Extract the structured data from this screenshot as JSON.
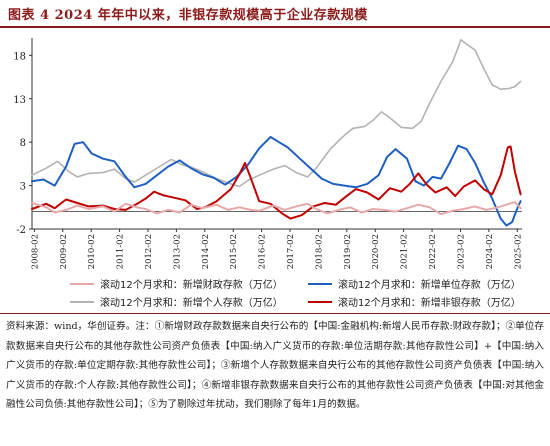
{
  "figure": {
    "title": "图表 4   2024 年年中以来，非银存款规模高于企业存款规模"
  },
  "legend": {
    "items": [
      {
        "label": "滚动12个月求和：新增财政存款（万亿）",
        "color": "#e6a8a8"
      },
      {
        "label": "滚动12个月求和：新增单位存款（万亿）",
        "color": "#1f5fbf"
      },
      {
        "label": "滚动12个月求和：新增个人存款（万亿）",
        "color": "#b3b3b3"
      },
      {
        "label": "滚动12个月求和：新增非银存款（万亿）",
        "color": "#c00000"
      }
    ]
  },
  "source": {
    "text": "资料来源：wind，华创证券。注：①新增财政存款数据来自央行公布的【中国:金融机构:新增人民币存款:财政存款】；②单位存款数据来自央行公布的其他存款性公司资产负债表【中国:纳入广义货币的存款:单位活期存款:其他存款性公司】+【中国:纳入广义货币的存款:单位定期存款:其他存款性公司】；③新增个人存款数据来自央行公布的其他存款性公司资产负债表【中国:纳入广义货币的存款:个人存款:其他存款性公司】；④新增非银存款数据来自央行公布的其他存款性公司资产负债表【中国:对其他金融性公司负债:其他存款性公司】；⑤为了剔除过年扰动，我们剔除了每年1月的数据。"
  },
  "chart_data": {
    "type": "line",
    "ylim": [
      -2,
      20
    ],
    "yticks": [
      -2,
      3,
      8,
      13,
      18
    ],
    "xticks": [
      "2008-02",
      "2009-02",
      "2010-02",
      "2011-02",
      "2012-02",
      "2013-02",
      "2014-02",
      "2015-02",
      "2016-02",
      "2017-02",
      "2018-02",
      "2019-02",
      "2020-02",
      "2021-02",
      "2022-02",
      "2023-02",
      "2024-02",
      "2025-02"
    ],
    "x_start": 2008.0,
    "x_end": 2025.25,
    "grid": false,
    "legend_position": "bottom",
    "series": [
      {
        "name": "滚动12个月求和：新增个人存款（万亿）",
        "color": "#b3b3b3",
        "points": [
          [
            2008.0,
            4.2
          ],
          [
            2008.5,
            5.0
          ],
          [
            2008.9,
            5.8
          ],
          [
            2009.3,
            4.6
          ],
          [
            2009.6,
            4.0
          ],
          [
            2010.0,
            4.4
          ],
          [
            2010.5,
            4.5
          ],
          [
            2010.9,
            4.9
          ],
          [
            2011.3,
            3.8
          ],
          [
            2011.6,
            3.4
          ],
          [
            2012.0,
            4.2
          ],
          [
            2012.5,
            5.2
          ],
          [
            2012.9,
            6.0
          ],
          [
            2013.3,
            5.4
          ],
          [
            2013.7,
            5.0
          ],
          [
            2014.0,
            4.6
          ],
          [
            2014.5,
            3.8
          ],
          [
            2015.0,
            3.2
          ],
          [
            2015.3,
            2.9
          ],
          [
            2015.6,
            3.6
          ],
          [
            2016.0,
            4.2
          ],
          [
            2016.5,
            4.9
          ],
          [
            2016.9,
            5.3
          ],
          [
            2017.3,
            4.5
          ],
          [
            2017.7,
            4.0
          ],
          [
            2018.0,
            5.0
          ],
          [
            2018.5,
            7.2
          ],
          [
            2018.9,
            8.5
          ],
          [
            2019.3,
            9.6
          ],
          [
            2019.7,
            9.8
          ],
          [
            2020.0,
            10.5
          ],
          [
            2020.3,
            11.5
          ],
          [
            2020.6,
            10.8
          ],
          [
            2021.0,
            9.7
          ],
          [
            2021.4,
            9.6
          ],
          [
            2021.7,
            10.4
          ],
          [
            2022.0,
            12.5
          ],
          [
            2022.4,
            15.0
          ],
          [
            2022.8,
            17.2
          ],
          [
            2023.0,
            18.9
          ],
          [
            2023.1,
            19.8
          ],
          [
            2023.3,
            19.3
          ],
          [
            2023.6,
            18.6
          ],
          [
            2023.9,
            16.5
          ],
          [
            2024.2,
            14.6
          ],
          [
            2024.5,
            14.1
          ],
          [
            2024.8,
            14.2
          ],
          [
            2025.0,
            14.4
          ],
          [
            2025.2,
            15.0
          ]
        ]
      },
      {
        "name": "滚动12个月求和：新增单位存款（万亿）",
        "color": "#1f5fbf",
        "points": [
          [
            2008.0,
            3.5
          ],
          [
            2008.4,
            3.7
          ],
          [
            2008.8,
            3.0
          ],
          [
            2009.2,
            5.2
          ],
          [
            2009.5,
            7.8
          ],
          [
            2009.8,
            8.0
          ],
          [
            2010.1,
            6.7
          ],
          [
            2010.5,
            6.1
          ],
          [
            2010.9,
            5.8
          ],
          [
            2011.3,
            4.0
          ],
          [
            2011.6,
            2.8
          ],
          [
            2012.0,
            3.2
          ],
          [
            2012.4,
            4.2
          ],
          [
            2012.8,
            5.2
          ],
          [
            2013.2,
            5.9
          ],
          [
            2013.6,
            5.0
          ],
          [
            2014.0,
            4.3
          ],
          [
            2014.4,
            3.9
          ],
          [
            2014.8,
            3.1
          ],
          [
            2015.2,
            4.0
          ],
          [
            2015.6,
            5.4
          ],
          [
            2016.0,
            7.3
          ],
          [
            2016.4,
            8.6
          ],
          [
            2016.7,
            8.0
          ],
          [
            2017.0,
            7.4
          ],
          [
            2017.4,
            6.2
          ],
          [
            2017.8,
            5.0
          ],
          [
            2018.2,
            3.8
          ],
          [
            2018.6,
            3.2
          ],
          [
            2019.0,
            3.0
          ],
          [
            2019.4,
            2.8
          ],
          [
            2019.8,
            3.2
          ],
          [
            2020.2,
            4.2
          ],
          [
            2020.5,
            6.3
          ],
          [
            2020.8,
            7.2
          ],
          [
            2021.2,
            6.1
          ],
          [
            2021.5,
            3.5
          ],
          [
            2021.8,
            3.0
          ],
          [
            2022.1,
            4.0
          ],
          [
            2022.4,
            3.8
          ],
          [
            2022.7,
            5.6
          ],
          [
            2023.0,
            7.6
          ],
          [
            2023.3,
            7.2
          ],
          [
            2023.6,
            5.6
          ],
          [
            2023.9,
            3.4
          ],
          [
            2024.2,
            1.5
          ],
          [
            2024.5,
            -0.8
          ],
          [
            2024.7,
            -1.6
          ],
          [
            2024.9,
            -1.2
          ],
          [
            2025.1,
            0.5
          ],
          [
            2025.2,
            1.2
          ]
        ]
      },
      {
        "name": "滚动12个月求和：新增非银存款（万亿）",
        "color": "#c00000",
        "points": [
          [
            2008.0,
            0.3
          ],
          [
            2008.5,
            0.9
          ],
          [
            2008.8,
            0.4
          ],
          [
            2009.2,
            1.4
          ],
          [
            2009.6,
            1.0
          ],
          [
            2010.0,
            0.6
          ],
          [
            2010.5,
            0.7
          ],
          [
            2010.9,
            0.3
          ],
          [
            2011.3,
            0.2
          ],
          [
            2011.7,
            0.9
          ],
          [
            2012.0,
            1.5
          ],
          [
            2012.3,
            2.3
          ],
          [
            2012.6,
            1.9
          ],
          [
            2013.0,
            1.6
          ],
          [
            2013.4,
            1.3
          ],
          [
            2013.8,
            0.3
          ],
          [
            2014.1,
            0.5
          ],
          [
            2014.5,
            1.2
          ],
          [
            2015.0,
            2.6
          ],
          [
            2015.3,
            4.3
          ],
          [
            2015.5,
            5.6
          ],
          [
            2015.7,
            3.9
          ],
          [
            2016.0,
            1.2
          ],
          [
            2016.4,
            0.9
          ],
          [
            2016.8,
            -0.2
          ],
          [
            2017.1,
            -0.8
          ],
          [
            2017.5,
            -0.4
          ],
          [
            2017.9,
            0.6
          ],
          [
            2018.3,
            1.0
          ],
          [
            2018.7,
            0.8
          ],
          [
            2019.0,
            1.6
          ],
          [
            2019.4,
            2.6
          ],
          [
            2019.8,
            2.2
          ],
          [
            2020.2,
            1.4
          ],
          [
            2020.6,
            2.7
          ],
          [
            2021.0,
            2.3
          ],
          [
            2021.3,
            3.2
          ],
          [
            2021.6,
            4.4
          ],
          [
            2021.9,
            3.1
          ],
          [
            2022.2,
            2.2
          ],
          [
            2022.6,
            2.8
          ],
          [
            2022.9,
            1.8
          ],
          [
            2023.2,
            2.9
          ],
          [
            2023.6,
            3.6
          ],
          [
            2023.9,
            2.6
          ],
          [
            2024.2,
            2.0
          ],
          [
            2024.5,
            4.2
          ],
          [
            2024.75,
            7.4
          ],
          [
            2024.85,
            7.5
          ],
          [
            2025.0,
            4.6
          ],
          [
            2025.2,
            2.0
          ]
        ]
      },
      {
        "name": "滚动12个月求和：新增财政存款（万亿）",
        "color": "#e6a8a8",
        "points": [
          [
            2008.0,
            1.0
          ],
          [
            2008.5,
            0.5
          ],
          [
            2008.8,
            -0.1
          ],
          [
            2009.2,
            0.2
          ],
          [
            2009.6,
            0.7
          ],
          [
            2010.0,
            0.3
          ],
          [
            2010.5,
            0.6
          ],
          [
            2010.9,
            0.0
          ],
          [
            2011.3,
            0.9
          ],
          [
            2011.7,
            0.5
          ],
          [
            2012.0,
            0.3
          ],
          [
            2012.4,
            -0.2
          ],
          [
            2012.8,
            0.2
          ],
          [
            2013.2,
            -0.1
          ],
          [
            2013.6,
            0.8
          ],
          [
            2014.0,
            0.4
          ],
          [
            2014.5,
            0.8
          ],
          [
            2014.9,
            0.2
          ],
          [
            2015.3,
            0.5
          ],
          [
            2015.7,
            0.2
          ],
          [
            2016.0,
            0.1
          ],
          [
            2016.5,
            0.7
          ],
          [
            2016.9,
            0.2
          ],
          [
            2017.3,
            0.6
          ],
          [
            2017.7,
            0.9
          ],
          [
            2018.0,
            0.3
          ],
          [
            2018.4,
            -0.2
          ],
          [
            2018.8,
            0.2
          ],
          [
            2019.2,
            0.5
          ],
          [
            2019.6,
            -0.1
          ],
          [
            2020.0,
            0.3
          ],
          [
            2020.4,
            0.2
          ],
          [
            2020.8,
            0.0
          ],
          [
            2021.2,
            0.4
          ],
          [
            2021.6,
            0.8
          ],
          [
            2022.0,
            0.5
          ],
          [
            2022.4,
            -0.3
          ],
          [
            2022.8,
            0.1
          ],
          [
            2023.2,
            0.3
          ],
          [
            2023.6,
            0.6
          ],
          [
            2024.0,
            0.2
          ],
          [
            2024.4,
            0.5
          ],
          [
            2024.8,
            0.9
          ],
          [
            2025.0,
            1.1
          ],
          [
            2025.2,
            0.4
          ]
        ]
      }
    ]
  }
}
